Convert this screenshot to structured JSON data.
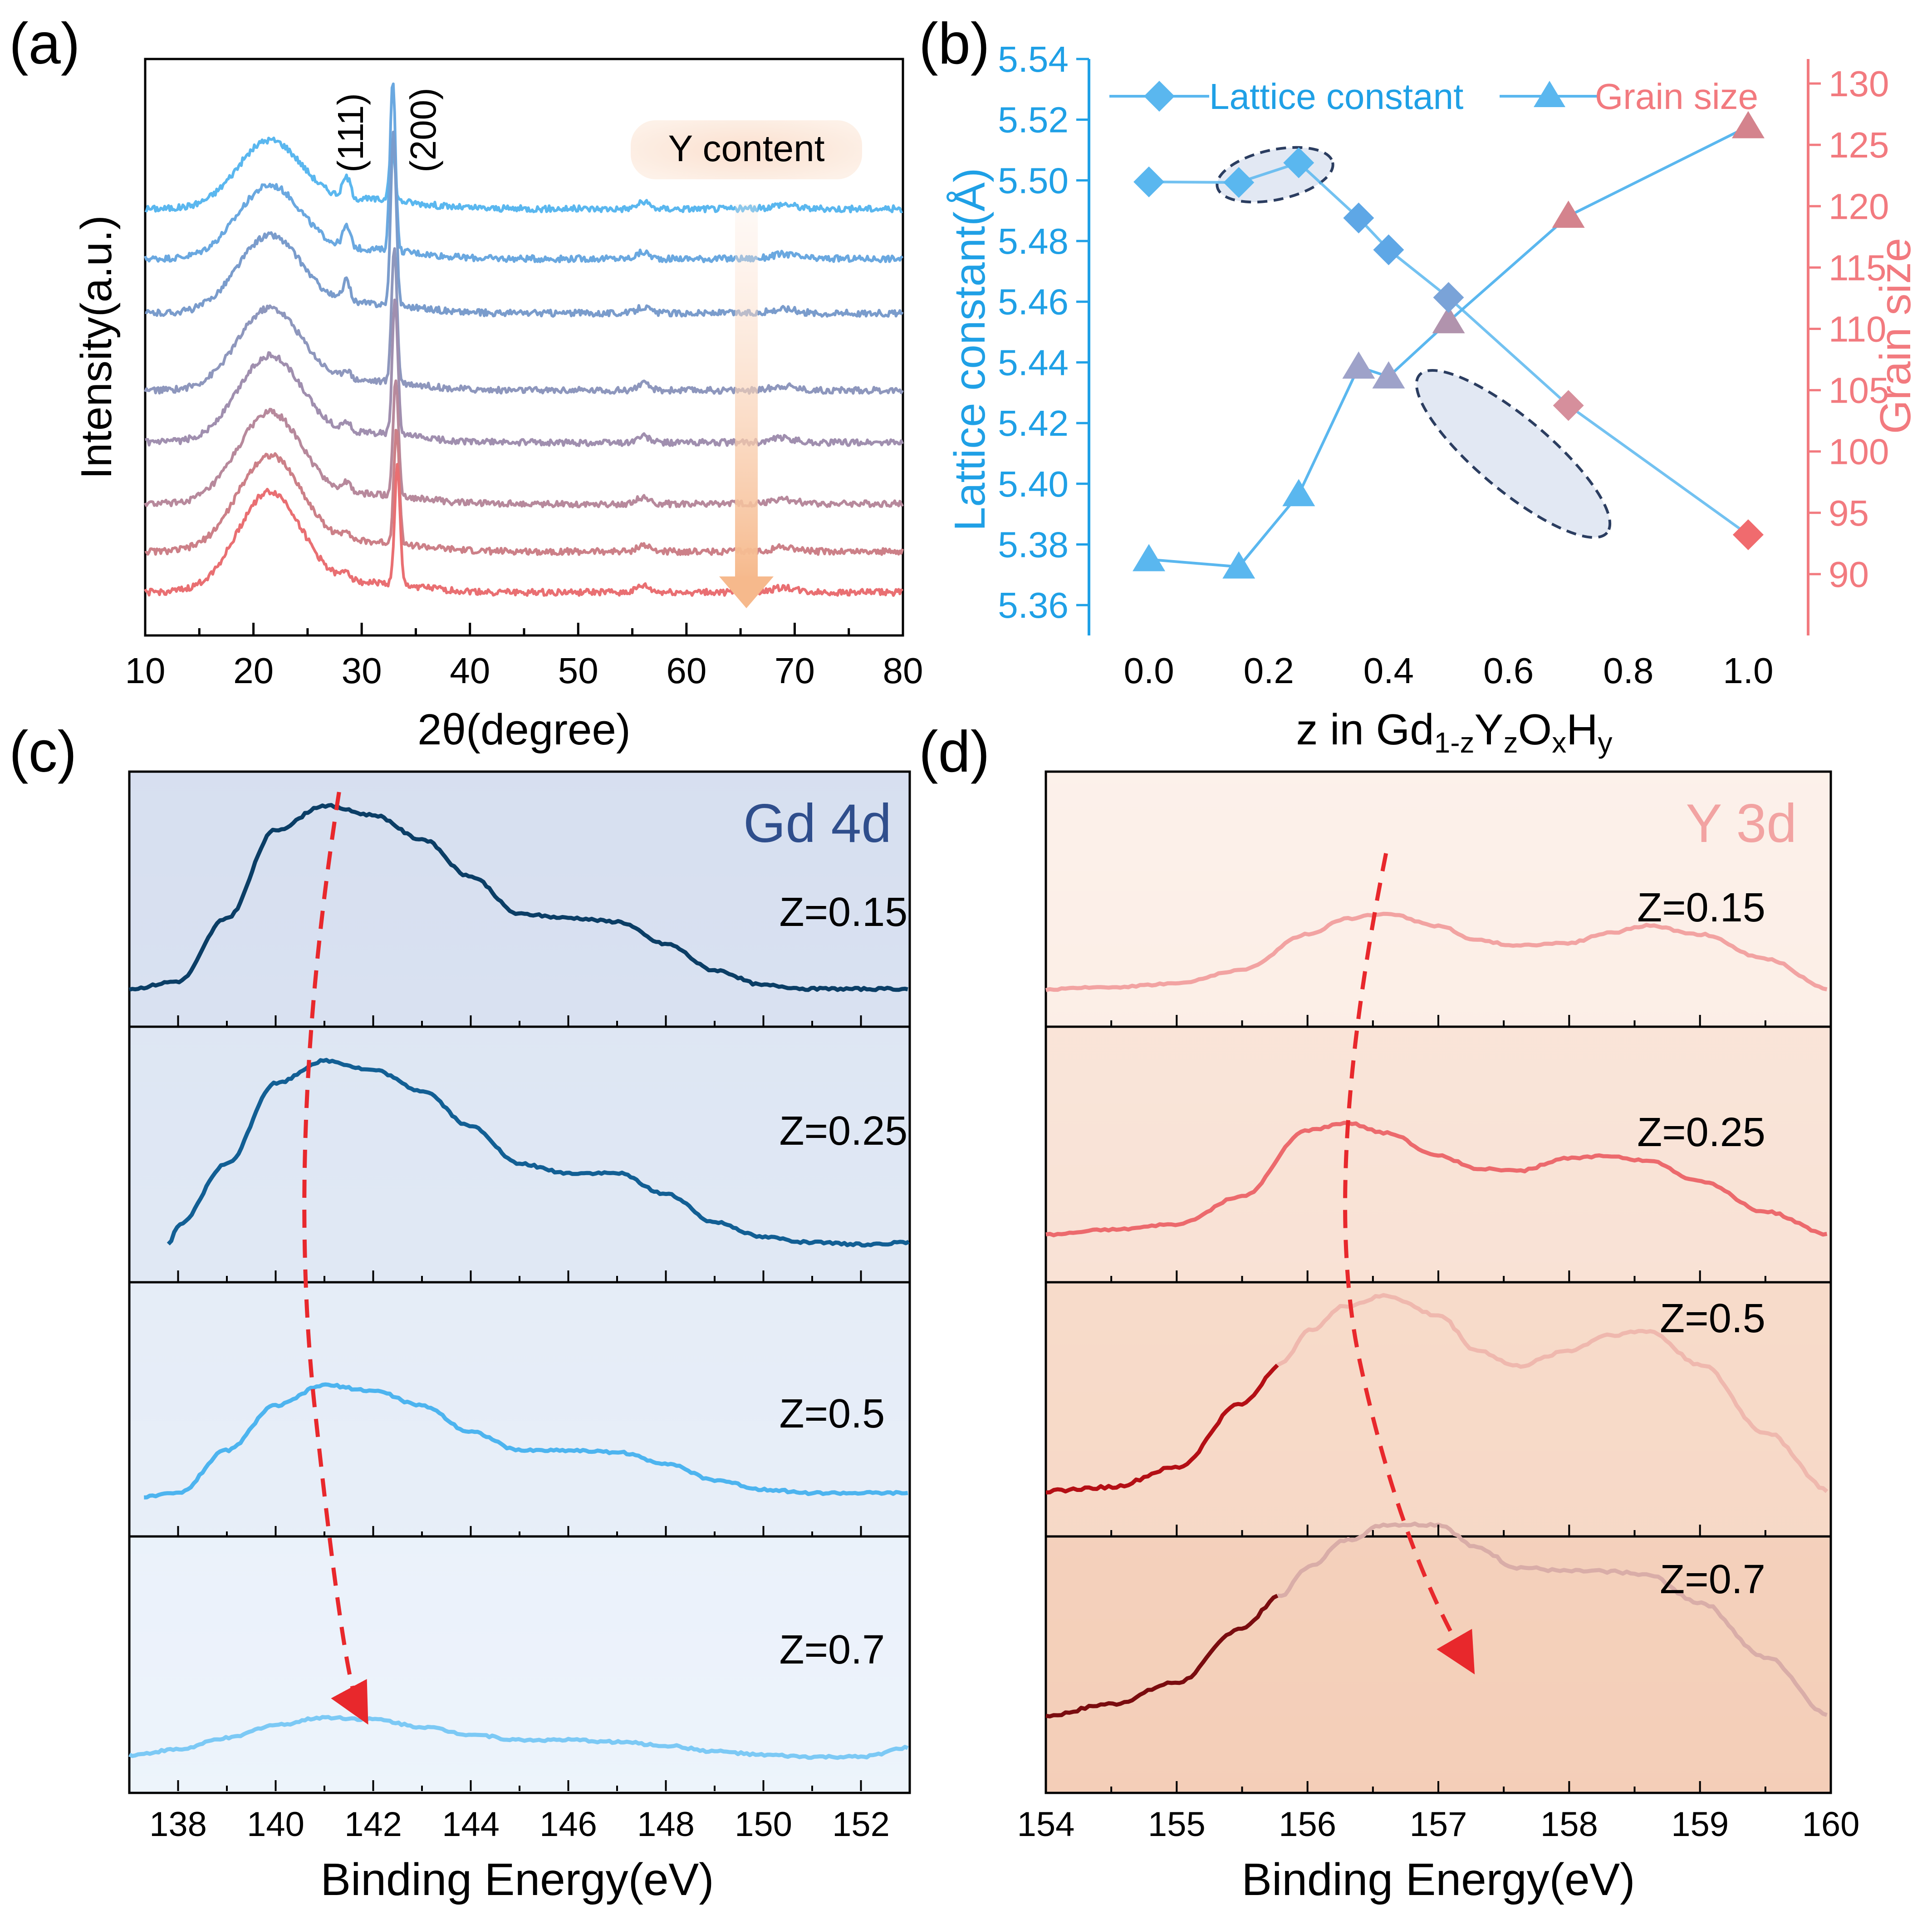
{
  "panel_labels": {
    "a": "(a)",
    "b": "(b)",
    "c": "(c)",
    "d": "(d)"
  },
  "colors": {
    "xrd": [
      "#5ab7ef",
      "#6aa8e0",
      "#7a9ccc",
      "#8e97bd",
      "#a08faf",
      "#b7899c",
      "#cc8088",
      "#e96f72"
    ],
    "lattice": "#5ab7ef",
    "grain": "#ef8a8e",
    "axis_left": "#1fa0e6",
    "axis_right": "#f27a7f",
    "gd_curves": [
      "#0b3e66",
      "#125f94",
      "#4db4ef",
      "#7cc9f5"
    ],
    "y_curves": [
      "#f2a3a2",
      "#ec6a6d",
      "#efb8ae",
      "#d9ada8"
    ],
    "y_dark_tail": [
      "#b40f15",
      "#7a0c0f"
    ],
    "arrow": "#e8282c",
    "gd_bg_top": "#d6dff0",
    "gd_bg_bottom": "#edf4fb",
    "y_bg_top": "#fbf0ea",
    "y_bg_bottom": "#f5d1bd"
  },
  "chart_data": [
    {
      "id": "a",
      "type": "line",
      "title": "",
      "xlabel": "2θ(degree)",
      "ylabel": "Intensity(a.u.)",
      "xlim": [
        10,
        80
      ],
      "xticks": [
        "10",
        "20",
        "30",
        "40",
        "50",
        "60",
        "70",
        "80"
      ],
      "peak_labels": [
        "(111)",
        "(200)"
      ],
      "annotation": "Y content",
      "series_count": 8,
      "features": {
        "broad_hump_center": 21.5,
        "peak_111": 28.6,
        "peak_200": 32.8,
        "minor_peaks": [
          56,
          69
        ]
      }
    },
    {
      "id": "b",
      "type": "scatter",
      "xlabel": "z in Gd1-zYzOxHy",
      "xlabel_parts": {
        "pre": "z in Gd",
        "s1": "1-z",
        "m1": "Y",
        "s2": "z",
        "m2": "O",
        "s3": "x",
        "m3": "H",
        "s4": "y"
      },
      "ylabel_left": "Lattice constant(Å)",
      "ylabel_right": "Grain size",
      "xlim": [
        -0.1,
        1.1
      ],
      "ylim_left": [
        5.35,
        5.54
      ],
      "ylim_right": [
        85,
        132
      ],
      "xticks": [
        "0.0",
        "0.2",
        "0.4",
        "0.6",
        "0.8",
        "1.0"
      ],
      "yticks_left": [
        "5.36",
        "5.38",
        "5.40",
        "5.42",
        "5.44",
        "5.46",
        "5.48",
        "5.50",
        "5.52",
        "5.54"
      ],
      "yticks_right": [
        "90",
        "95",
        "100",
        "105",
        "110",
        "115",
        "120",
        "125",
        "130"
      ],
      "legend": [
        "Lattice constant",
        "Grain size"
      ],
      "series": [
        {
          "name": "Lattice constant",
          "marker": "diamond",
          "x": [
            0,
            0.15,
            0.25,
            0.35,
            0.4,
            0.5,
            0.7,
            1.0
          ],
          "y": [
            5.4995,
            5.4993,
            5.5058,
            5.4876,
            5.4771,
            5.4614,
            5.4258,
            5.3832
          ]
        },
        {
          "name": "Grain size",
          "marker": "triangle",
          "x": [
            0,
            0.15,
            0.25,
            0.35,
            0.4,
            0.5,
            0.7,
            1.0
          ],
          "y": [
            91.2,
            90.6,
            96.5,
            106.9,
            106.1,
            110.6,
            119.2,
            126.5
          ]
        }
      ]
    },
    {
      "id": "c",
      "type": "line",
      "title": "Gd 4d",
      "xlabel": "Binding Energy(eV)",
      "xlim": [
        137,
        153
      ],
      "xticks": [
        "138",
        "140",
        "142",
        "144",
        "146",
        "148",
        "150",
        "152"
      ],
      "series": [
        {
          "name": "Z=0.15",
          "x": [
            137,
            138,
            139,
            140,
            141,
            142,
            143,
            144,
            145,
            146,
            147,
            148,
            149,
            150,
            151,
            152,
            153
          ],
          "y": [
            0.02,
            0.06,
            0.4,
            0.87,
            1.0,
            0.95,
            0.82,
            0.62,
            0.42,
            0.4,
            0.38,
            0.26,
            0.12,
            0.04,
            0.02,
            0.02,
            0.02
          ]
        },
        {
          "name": "Z=0.25",
          "x": [
            137.8,
            138,
            139,
            140,
            141,
            142,
            143,
            144,
            145,
            146,
            147,
            148,
            149,
            150,
            151,
            152,
            153
          ],
          "y": [
            0.02,
            0.12,
            0.45,
            0.88,
            1.0,
            0.95,
            0.84,
            0.65,
            0.45,
            0.4,
            0.4,
            0.29,
            0.14,
            0.06,
            0.03,
            0.02,
            0.03
          ]
        },
        {
          "name": "Z=0.5",
          "x": [
            137.3,
            138,
            139,
            140,
            141,
            142,
            143,
            144,
            145,
            146,
            147,
            148,
            149,
            150,
            151,
            152,
            153
          ],
          "y": [
            0.03,
            0.05,
            0.28,
            0.52,
            0.63,
            0.6,
            0.52,
            0.38,
            0.28,
            0.28,
            0.27,
            0.21,
            0.12,
            0.07,
            0.05,
            0.05,
            0.05
          ]
        },
        {
          "name": "Z=0.7",
          "x": [
            137,
            138,
            139,
            140,
            141,
            142,
            143,
            144,
            145,
            146,
            147,
            148,
            149,
            150,
            151,
            152,
            153
          ],
          "y": [
            0.02,
            0.05,
            0.11,
            0.18,
            0.22,
            0.21,
            0.17,
            0.13,
            0.1,
            0.1,
            0.09,
            0.07,
            0.04,
            0.02,
            0.01,
            0.01,
            0.06
          ]
        }
      ]
    },
    {
      "id": "d",
      "type": "line",
      "title": "Y 3d",
      "xlabel": "Binding Energy(eV)",
      "xlim": [
        154,
        160
      ],
      "xticks": [
        "154",
        "155",
        "156",
        "157",
        "158",
        "159",
        "160"
      ],
      "series": [
        {
          "name": "Z=0.15",
          "x": [
            154,
            154.5,
            155,
            155.5,
            156,
            156.3,
            156.6,
            157,
            157.3,
            157.6,
            158,
            158.3,
            158.6,
            159,
            159.5,
            160
          ],
          "y": [
            0.0,
            0.02,
            0.05,
            0.16,
            0.45,
            0.58,
            0.62,
            0.52,
            0.4,
            0.36,
            0.38,
            0.46,
            0.52,
            0.45,
            0.25,
            0.0
          ]
        },
        {
          "name": "Z=0.25",
          "x": [
            154,
            154.5,
            155,
            155.5,
            156,
            156.3,
            156.6,
            157,
            157.3,
            157.6,
            158,
            158.3,
            158.6,
            159,
            159.5,
            160
          ],
          "y": [
            0.0,
            0.04,
            0.08,
            0.3,
            0.82,
            0.88,
            0.8,
            0.62,
            0.52,
            0.5,
            0.6,
            0.62,
            0.58,
            0.42,
            0.18,
            0.0
          ]
        },
        {
          "name": "Z=0.5",
          "x": [
            154,
            154.5,
            155,
            155.5,
            155.8,
            156,
            156.3,
            156.6,
            157,
            157.3,
            157.6,
            158,
            158.3,
            158.6,
            159,
            159.5,
            160
          ],
          "y": [
            0.0,
            0.02,
            0.12,
            0.45,
            0.65,
            0.82,
            0.95,
            1.0,
            0.9,
            0.72,
            0.64,
            0.72,
            0.8,
            0.82,
            0.65,
            0.3,
            0.0
          ]
        },
        {
          "name": "Z=0.7",
          "x": [
            154,
            154.5,
            155,
            155.5,
            155.8,
            156,
            156.3,
            156.6,
            157,
            157.3,
            157.6,
            158,
            158.3,
            158.6,
            159,
            159.5,
            160
          ],
          "y": [
            0.0,
            0.06,
            0.17,
            0.45,
            0.62,
            0.76,
            0.9,
            0.98,
            0.98,
            0.86,
            0.76,
            0.74,
            0.74,
            0.72,
            0.58,
            0.3,
            0.0
          ]
        }
      ]
    }
  ]
}
